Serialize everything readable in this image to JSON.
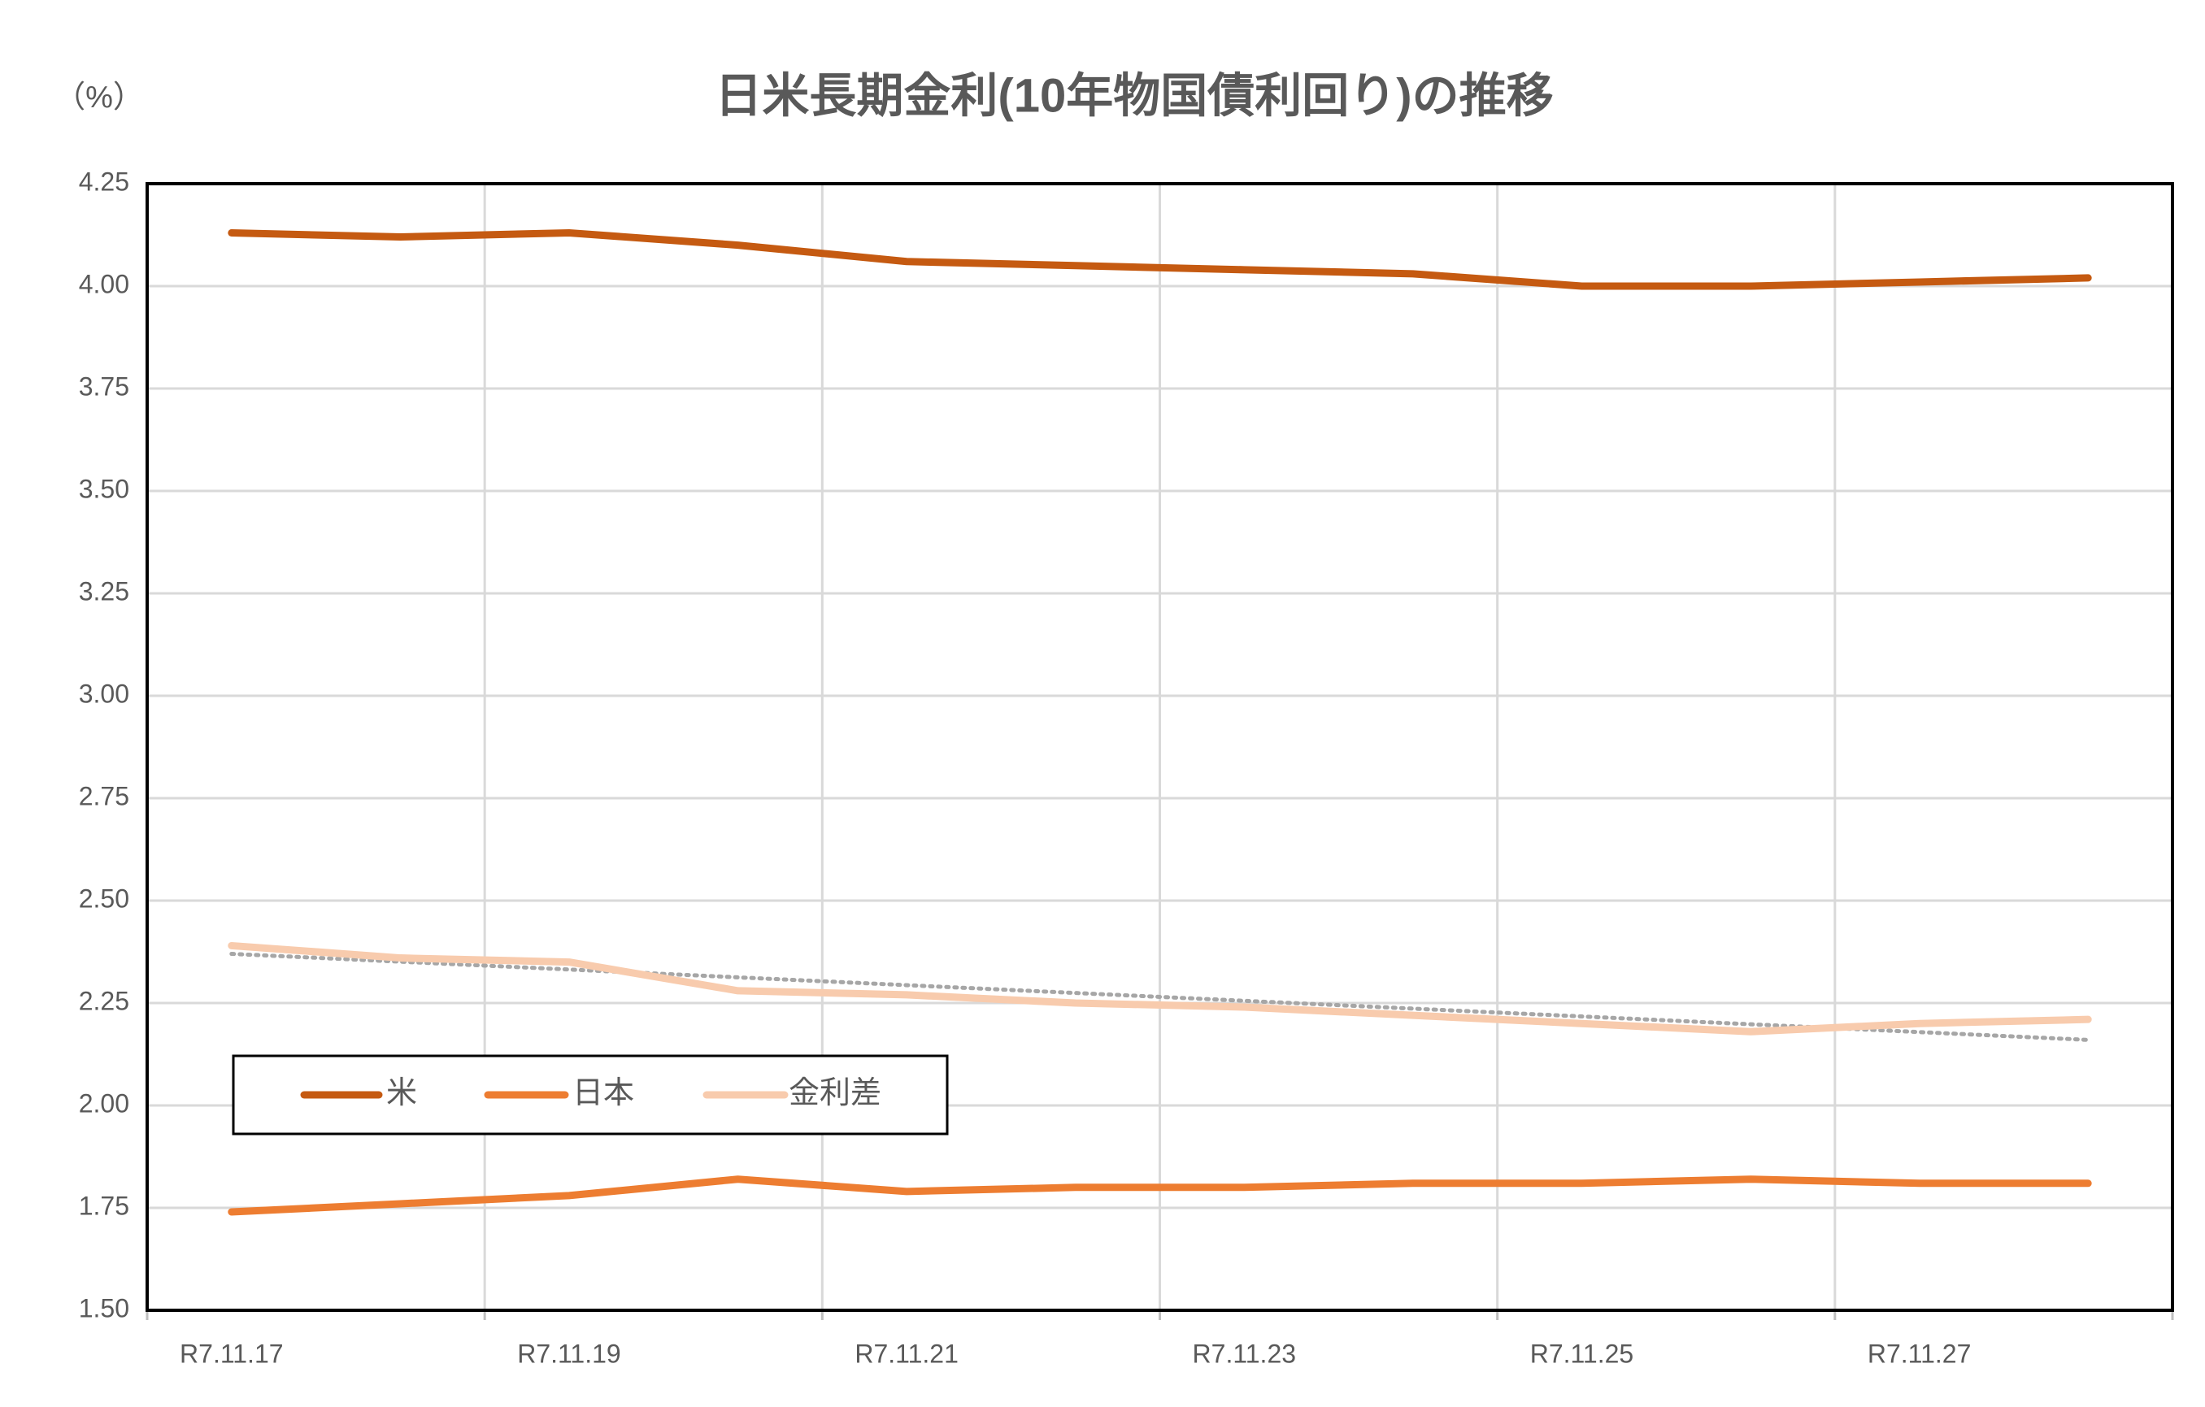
{
  "chart_data": {
    "type": "line",
    "title": "日米長期金利(10年物国債利回り)の推移",
    "y_unit": "（%）",
    "categories": [
      "R7.11.17",
      null,
      "R7.11.19",
      null,
      "R7.11.21",
      null,
      "R7.11.23",
      null,
      "R7.11.25",
      null,
      "R7.11.27",
      null
    ],
    "series": [
      {
        "name": "米",
        "color": "#c55a11",
        "values": [
          4.13,
          4.12,
          4.13,
          4.1,
          4.06,
          4.05,
          4.04,
          4.03,
          4.0,
          4.0,
          4.01,
          4.02
        ]
      },
      {
        "name": "日本",
        "color": "#ed7d31",
        "values": [
          1.74,
          1.76,
          1.78,
          1.82,
          1.79,
          1.8,
          1.8,
          1.81,
          1.81,
          1.82,
          1.81,
          1.81
        ]
      },
      {
        "name": "金利差",
        "color": "#f8cbad",
        "values": [
          2.39,
          2.36,
          2.35,
          2.28,
          2.27,
          2.25,
          2.24,
          2.22,
          2.2,
          2.18,
          2.2,
          2.21
        ]
      }
    ],
    "trendline": {
      "color": "#a6a6a6",
      "values": [
        2.37,
        2.16
      ]
    },
    "ylim": [
      1.5,
      4.25
    ],
    "yticks": [
      {
        "value": 1.5,
        "label": "1.50"
      },
      1.75,
      {
        "value": 2,
        "label": "2.00"
      },
      2.25,
      {
        "value": 2.5,
        "label": "2.50"
      },
      2.75,
      {
        "value": 3,
        "label": "3.00"
      },
      3.25,
      {
        "value": 3.5,
        "label": "3.50"
      },
      3.75,
      {
        "value": 4,
        "label": "4.00"
      },
      4.25
    ],
    "grid": true,
    "legend": "lower-left"
  }
}
